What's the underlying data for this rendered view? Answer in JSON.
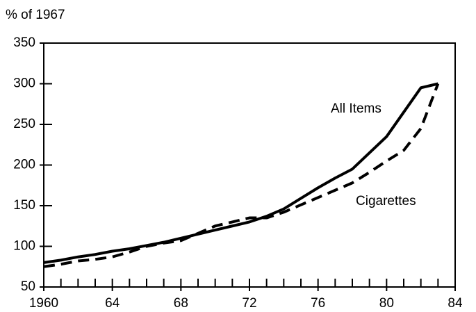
{
  "chart_data": {
    "type": "line",
    "title": "% of 1967",
    "x": [
      1960,
      1961,
      1962,
      1963,
      1964,
      1965,
      1966,
      1967,
      1968,
      1969,
      1970,
      1971,
      1972,
      1973,
      1974,
      1975,
      1976,
      1977,
      1978,
      1979,
      1980,
      1981,
      1982,
      1983
    ],
    "series": [
      {
        "name": "All Items",
        "color": "#000000",
        "style": "solid",
        "values": [
          80,
          83,
          87,
          90,
          94,
          97,
          101,
          105,
          110,
          115,
          120,
          125,
          130,
          137,
          146,
          159,
          172,
          184,
          195,
          215,
          235,
          265,
          295,
          300
        ]
      },
      {
        "name": "Cigarettes",
        "color": "#000000",
        "style": "dashed",
        "values": [
          75,
          78,
          82,
          84,
          87,
          93,
          100,
          104,
          107,
          116,
          125,
          130,
          135,
          135,
          142,
          151,
          160,
          169,
          178,
          191,
          205,
          218,
          245,
          300
        ]
      }
    ],
    "xlim": [
      1960,
      1984
    ],
    "xticks": [
      1960,
      {
        "value": 1964,
        "label": "64"
      },
      {
        "value": 1968,
        "label": "68"
      },
      {
        "value": 1972,
        "label": "72"
      },
      {
        "value": 1976,
        "label": "76"
      },
      {
        "value": 1980,
        "label": "80"
      },
      {
        "value": 1984,
        "label": "84"
      }
    ],
    "xminorticks": [
      1961,
      1962,
      1963,
      1965,
      1966,
      1967,
      1969,
      1970,
      1971,
      1973,
      1974,
      1975,
      1977,
      1978,
      1979,
      1981,
      1982,
      1983
    ],
    "ylim": [
      50,
      350
    ],
    "yticks": [
      50,
      100,
      150,
      200,
      250,
      300,
      350
    ],
    "grid": false
  }
}
